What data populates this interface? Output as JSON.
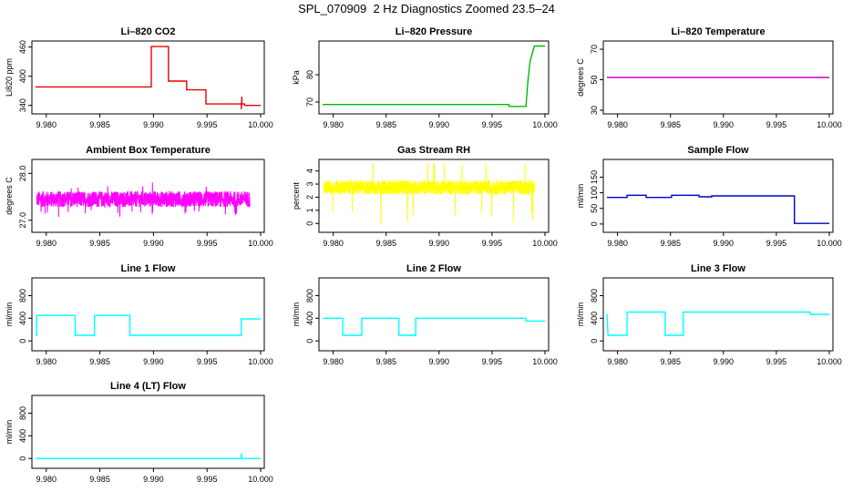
{
  "page": {
    "title": "SPL_070909  2 Hz Diagnostics Zoomed 23.5–24"
  },
  "chart_data": [
    {
      "id": "co2",
      "type": "line",
      "title": "Li–820 CO2",
      "ylabel": "Li820 ppm",
      "color": "#ee0000",
      "xlim": [
        9.979,
        10.0
      ],
      "ylim": [
        330,
        465
      ],
      "yticks": [
        340,
        400,
        460
      ],
      "xticks": [
        "9.980",
        "9.985",
        "9.990",
        "9.995",
        "10.000"
      ],
      "series": [
        {
          "x": [
            9.979,
            9.9898,
            9.9898,
            9.9914,
            9.9914,
            9.9931,
            9.9931,
            9.9949,
            9.9949,
            9.9982,
            9.9982,
            9.99825,
            9.99825,
            9.9985,
            9.9985,
            10.0
          ],
          "y": [
            378,
            378,
            461,
            461,
            390,
            390,
            372,
            372,
            343,
            343,
            332,
            358,
            343,
            343,
            340,
            340
          ]
        }
      ]
    },
    {
      "id": "pressure",
      "type": "line",
      "title": "Li–820 Pressure",
      "ylabel": "kPa",
      "color": "#00bb00",
      "xlim": [
        9.979,
        10.0
      ],
      "ylim": [
        67,
        91
      ],
      "yticks": [
        70,
        80
      ],
      "xticks": [
        "9.980",
        "9.985",
        "9.990",
        "9.995",
        "10.000"
      ],
      "series": [
        {
          "x": [
            9.979,
            9.9966,
            9.9966,
            9.9982,
            9.9984,
            9.9986,
            9.999,
            10.0
          ],
          "y": [
            69.1,
            69.1,
            68.4,
            68.4,
            78,
            85,
            90.5,
            90.5
          ]
        }
      ]
    },
    {
      "id": "temperature",
      "type": "line",
      "title": "Li–820 Temperature",
      "ylabel": "degrees C",
      "color": "#cc00cc",
      "xlim": [
        9.979,
        10.0
      ],
      "ylim": [
        30,
        73
      ],
      "yticks": [
        30,
        50,
        70
      ],
      "xticks": [
        "9.980",
        "9.985",
        "9.990",
        "9.995",
        "10.000"
      ],
      "series": [
        {
          "x": [
            9.979,
            10.0
          ],
          "y": [
            51.5,
            51.5
          ]
        }
      ]
    },
    {
      "id": "ambient",
      "type": "line",
      "title": "Ambient Box Temperature",
      "ylabel": "degrees C",
      "color": "#ff00ff",
      "xlim": [
        9.979,
        10.0
      ],
      "ylim": [
        26.82,
        28.22
      ],
      "yticks": [
        27.0,
        28.0
      ],
      "xticks": [
        "9.980",
        "9.985",
        "9.990",
        "9.995",
        "10.000"
      ],
      "noise": {
        "center": 27.45,
        "amp": 0.17,
        "spike": 0.38,
        "count": 1500
      }
    },
    {
      "id": "rh",
      "type": "line",
      "title": "Gas Stream RH",
      "ylabel": "percent",
      "color": "#ffff00",
      "xlim": [
        9.979,
        10.0
      ],
      "ylim": [
        -0.4,
        4.6
      ],
      "yticks": [
        0,
        1,
        2,
        3,
        4
      ],
      "xticks": [
        "9.980",
        "9.985",
        "9.990",
        "9.995",
        "10.000"
      ],
      "noise": {
        "center": 2.75,
        "amp": 0.55,
        "spike": 2.8,
        "count": 1500
      }
    },
    {
      "id": "sample",
      "type": "line",
      "title": "Sample Flow",
      "ylabel": "ml/min",
      "color": "#0000cc",
      "xlim": [
        9.979,
        10.0
      ],
      "ylim": [
        -15,
        195
      ],
      "yticks": [
        0,
        50,
        100,
        150
      ],
      "xticks": [
        "9.980",
        "9.985",
        "9.990",
        "9.995",
        "10.000"
      ],
      "series": [
        {
          "x": [
            9.979,
            9.9809,
            9.9809,
            9.9827,
            9.9827,
            9.9851,
            9.9851,
            9.9877,
            9.9877,
            9.9889,
            9.9889,
            9.9967,
            9.9967,
            10.0
          ],
          "y": [
            85,
            85,
            92,
            92,
            85,
            85,
            92,
            92,
            87,
            87,
            90,
            90,
            2,
            2
          ]
        }
      ]
    },
    {
      "id": "line1",
      "type": "line",
      "title": "Line 1 Flow",
      "ylabel": "ml/min",
      "color": "#00ffff",
      "xlim": [
        9.979,
        10.0
      ],
      "ylim": [
        -110,
        1050
      ],
      "yticks": [
        0,
        400,
        800
      ],
      "xticks": [
        "9.980",
        "9.985",
        "9.990",
        "9.995",
        "10.000"
      ],
      "series": [
        {
          "x": [
            9.979,
            9.9791,
            9.9791,
            9.9827,
            9.9827,
            9.9845,
            9.9845,
            9.9878,
            9.9878,
            9.9982,
            9.9982,
            10.0
          ],
          "y": [
            100,
            100,
            450,
            450,
            100,
            100,
            450,
            450,
            100,
            100,
            390,
            390
          ]
        }
      ]
    },
    {
      "id": "line2",
      "type": "line",
      "title": "Line 2 Flow",
      "ylabel": "ml/min",
      "color": "#00ffff",
      "xlim": [
        9.979,
        10.0
      ],
      "ylim": [
        -110,
        1050
      ],
      "yticks": [
        0,
        400,
        800
      ],
      "xticks": [
        "9.980",
        "9.985",
        "9.990",
        "9.995",
        "10.000"
      ],
      "series": [
        {
          "x": [
            9.979,
            9.9809,
            9.9809,
            9.9827,
            9.9827,
            9.9862,
            9.9862,
            9.9878,
            9.9878,
            9.9982,
            9.9982,
            10.0
          ],
          "y": [
            400,
            400,
            100,
            100,
            400,
            400,
            100,
            100,
            400,
            400,
            350,
            350
          ]
        }
      ]
    },
    {
      "id": "line3",
      "type": "line",
      "title": "Line 3 Flow",
      "ylabel": "ml/min",
      "color": "#00ffff",
      "xlim": [
        9.979,
        10.0
      ],
      "ylim": [
        -110,
        1050
      ],
      "yticks": [
        0,
        400,
        800
      ],
      "xticks": [
        "9.980",
        "9.985",
        "9.990",
        "9.995",
        "10.000"
      ],
      "series": [
        {
          "x": [
            9.979,
            9.9791,
            9.9791,
            9.9809,
            9.9809,
            9.9845,
            9.9845,
            9.9862,
            9.9862,
            9.9982,
            9.9982,
            10.0
          ],
          "y": [
            480,
            100,
            100,
            100,
            510,
            510,
            100,
            100,
            510,
            510,
            470,
            470
          ]
        }
      ]
    },
    {
      "id": "line4",
      "type": "line",
      "title": "Line 4 (LT) Flow",
      "ylabel": "ml/min",
      "color": "#00ffff",
      "xlim": [
        9.979,
        10.0
      ],
      "ylim": [
        -110,
        1050
      ],
      "yticks": [
        0,
        400,
        800
      ],
      "xticks": [
        "9.980",
        "9.985",
        "9.990",
        "9.995",
        "10.000"
      ],
      "series": [
        {
          "x": [
            9.979,
            9.9982,
            9.9982,
            9.99825,
            9.99825,
            10.0
          ],
          "y": [
            0,
            0,
            90,
            0,
            0,
            0
          ]
        }
      ]
    }
  ]
}
